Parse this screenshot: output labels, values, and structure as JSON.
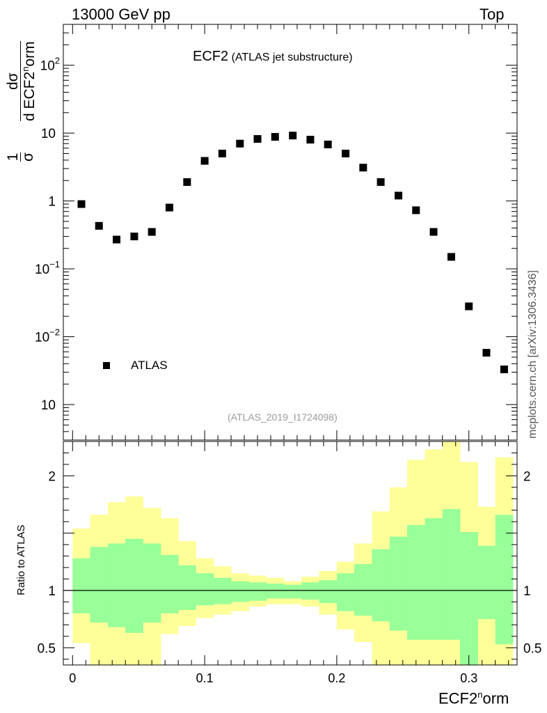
{
  "header": {
    "left_text": "13000 GeV pp",
    "right_text": "Top"
  },
  "side_label": "mcplots.cern.ch [arXiv:1306.3436]",
  "chart_data": [
    {
      "type": "scatter",
      "panel": "main",
      "title": "ECF2",
      "subtitle": "(ATLAS jet substructure)",
      "analysis_id": "(ATLAS_2019_I1724098)",
      "ylabel": "1/σ dσ/d ECF2^norm",
      "yscale": "log",
      "ylim": [
        0.0003,
        400
      ],
      "xlim": [
        -0.007,
        0.3365
      ],
      "x_ticks": [
        0,
        0.1,
        0.2,
        0.3
      ],
      "y_tick_labels": [
        {
          "value": 100,
          "label": "10",
          "exp": "2"
        },
        {
          "value": 10,
          "label": "10",
          "exp": ""
        },
        {
          "value": 1,
          "label": "1",
          "exp": ""
        },
        {
          "value": 0.1,
          "label": "10",
          "exp": "−1"
        },
        {
          "value": 0.01,
          "label": "10",
          "exp": "−2"
        },
        {
          "value": 0.001,
          "label": "10",
          "exp": ""
        }
      ],
      "legend": {
        "placement": "lower-left",
        "entries": [
          "ATLAS"
        ]
      },
      "series": [
        {
          "name": "ATLAS",
          "color": "#000000",
          "marker": "square",
          "x": [
            0.0067,
            0.02,
            0.0333,
            0.0467,
            0.06,
            0.0733,
            0.0867,
            0.1,
            0.1133,
            0.1267,
            0.14,
            0.1533,
            0.1667,
            0.18,
            0.1933,
            0.2067,
            0.22,
            0.2333,
            0.2467,
            0.26,
            0.2733,
            0.2867,
            0.3,
            0.3133,
            0.3267
          ],
          "y": [
            0.9,
            0.43,
            0.27,
            0.3,
            0.35,
            0.8,
            1.9,
            3.9,
            5.0,
            7.0,
            8.2,
            8.8,
            9.2,
            8.0,
            6.8,
            5.0,
            3.1,
            1.9,
            1.2,
            0.73,
            0.35,
            0.15,
            0.028,
            0.0058,
            0.0033
          ]
        }
      ]
    },
    {
      "type": "area",
      "panel": "ratio",
      "ylabel": "Ratio to ATLAS",
      "xlabel": "ECF2^norm",
      "ylim": [
        0.35,
        2.3
      ],
      "y_ticks": [
        0.5,
        1,
        2
      ],
      "bin_edges": [
        0,
        0.0133,
        0.0267,
        0.04,
        0.0533,
        0.0667,
        0.08,
        0.0933,
        0.1067,
        0.12,
        0.1333,
        0.1467,
        0.16,
        0.1733,
        0.1867,
        0.2,
        0.2133,
        0.2267,
        0.24,
        0.2533,
        0.2667,
        0.28,
        0.2933,
        0.3067,
        0.32,
        0.3333
      ],
      "bands": [
        {
          "name": "outer",
          "color": "#ffff99",
          "low": [
            0.54,
            0.35,
            0.35,
            0.35,
            0.35,
            0.62,
            0.69,
            0.76,
            0.79,
            0.82,
            0.86,
            0.88,
            0.88,
            0.86,
            0.79,
            0.66,
            0.55,
            0.35,
            0.35,
            0.35,
            0.35,
            0.35,
            0.35,
            0.35,
            0.35
          ],
          "high": [
            1.54,
            1.66,
            1.77,
            1.82,
            1.72,
            1.63,
            1.43,
            1.28,
            1.21,
            1.15,
            1.13,
            1.11,
            1.08,
            1.12,
            1.17,
            1.25,
            1.41,
            1.69,
            1.9,
            2.14,
            2.23,
            2.3,
            2.12,
            1.73,
            2.16
          ]
        },
        {
          "name": "inner",
          "color": "#99ff99",
          "low": [
            0.8,
            0.72,
            0.68,
            0.63,
            0.72,
            0.8,
            0.83,
            0.87,
            0.88,
            0.9,
            0.91,
            0.93,
            0.93,
            0.92,
            0.89,
            0.82,
            0.78,
            0.73,
            0.65,
            0.57,
            0.57,
            0.57,
            0.35,
            0.75,
            0.53
          ],
          "high": [
            1.28,
            1.38,
            1.41,
            1.45,
            1.41,
            1.31,
            1.22,
            1.15,
            1.11,
            1.08,
            1.07,
            1.06,
            1.05,
            1.07,
            1.09,
            1.15,
            1.23,
            1.36,
            1.47,
            1.57,
            1.63,
            1.71,
            1.51,
            1.39,
            1.66
          ]
        }
      ],
      "reference_line": 1
    }
  ]
}
